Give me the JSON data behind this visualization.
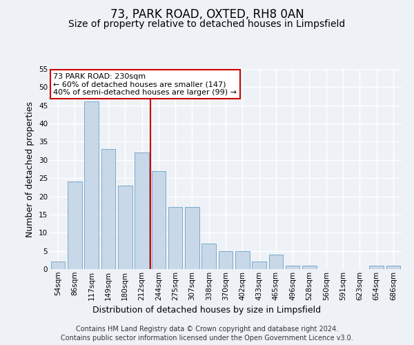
{
  "title": "73, PARK ROAD, OXTED, RH8 0AN",
  "subtitle": "Size of property relative to detached houses in Limpsfield",
  "xlabel": "Distribution of detached houses by size in Limpsfield",
  "ylabel": "Number of detached properties",
  "categories": [
    "54sqm",
    "86sqm",
    "117sqm",
    "149sqm",
    "180sqm",
    "212sqm",
    "244sqm",
    "275sqm",
    "307sqm",
    "338sqm",
    "370sqm",
    "402sqm",
    "433sqm",
    "465sqm",
    "496sqm",
    "528sqm",
    "560sqm",
    "591sqm",
    "623sqm",
    "654sqm",
    "686sqm"
  ],
  "values": [
    2,
    24,
    46,
    33,
    23,
    32,
    27,
    17,
    17,
    7,
    5,
    5,
    2,
    4,
    1,
    1,
    0,
    0,
    0,
    1,
    1
  ],
  "bar_color": "#c8d8e8",
  "bar_edge_color": "#7aaac8",
  "vline_x_index": 6,
  "vline_color": "#cc0000",
  "ylim": [
    0,
    55
  ],
  "yticks": [
    0,
    5,
    10,
    15,
    20,
    25,
    30,
    35,
    40,
    45,
    50,
    55
  ],
  "annotation_text": "73 PARK ROAD: 230sqm\n← 60% of detached houses are smaller (147)\n40% of semi-detached houses are larger (99) →",
  "annotation_box_color": "#ffffff",
  "annotation_box_edge": "#cc0000",
  "footer_line1": "Contains HM Land Registry data © Crown copyright and database right 2024.",
  "footer_line2": "Contains public sector information licensed under the Open Government Licence v3.0.",
  "background_color": "#eef2f7",
  "grid_color": "#ffffff",
  "title_fontsize": 12,
  "subtitle_fontsize": 10,
  "axis_label_fontsize": 9,
  "tick_fontsize": 7.5,
  "footer_fontsize": 7,
  "annot_fontsize": 8
}
